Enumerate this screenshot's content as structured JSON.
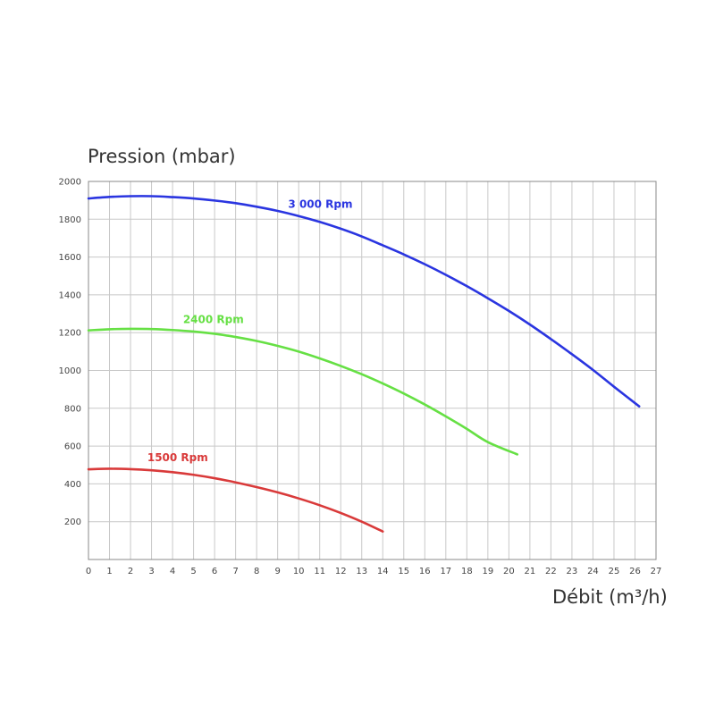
{
  "chart_data": {
    "type": "line",
    "xlabel": "Débit (m³/h)",
    "ylabel": "Pression (mbar)",
    "xlim": [
      0,
      27
    ],
    "ylim": [
      0,
      2000
    ],
    "x_ticks": [
      "0",
      "1",
      "2",
      "3",
      "4",
      "5",
      "6",
      "7",
      "8",
      "9",
      "10",
      "11",
      "12",
      "13",
      "14",
      "15",
      "16",
      "17",
      "18",
      "19",
      "20",
      "21",
      "22",
      "23",
      "24",
      "25",
      "26",
      "27"
    ],
    "y_ticks": [
      "200",
      "400",
      "600",
      "800",
      "1000",
      "1200",
      "1400",
      "1600",
      "1800",
      "2000"
    ],
    "grid": true,
    "series": [
      {
        "name": "3 000 Rpm",
        "color": "#2a35e0",
        "points": [
          [
            0,
            1910
          ],
          [
            1,
            1918
          ],
          [
            2,
            1922
          ],
          [
            3,
            1922
          ],
          [
            4,
            1917
          ],
          [
            5,
            1910
          ],
          [
            6,
            1899
          ],
          [
            7,
            1885
          ],
          [
            8,
            1866
          ],
          [
            9,
            1844
          ],
          [
            10,
            1817
          ],
          [
            11,
            1786
          ],
          [
            12,
            1750
          ],
          [
            13,
            1709
          ],
          [
            14,
            1662
          ],
          [
            15,
            1614
          ],
          [
            16,
            1562
          ],
          [
            17,
            1506
          ],
          [
            18,
            1446
          ],
          [
            19,
            1382
          ],
          [
            20,
            1315
          ],
          [
            21,
            1243
          ],
          [
            22,
            1166
          ],
          [
            23,
            1086
          ],
          [
            24,
            1003
          ],
          [
            25,
            914
          ],
          [
            26.2,
            810
          ]
        ]
      },
      {
        "name": "2400 Rpm",
        "color": "#66e044",
        "points": [
          [
            0,
            1212
          ],
          [
            1,
            1218
          ],
          [
            2,
            1220
          ],
          [
            3,
            1219
          ],
          [
            4,
            1214
          ],
          [
            5,
            1206
          ],
          [
            6,
            1194
          ],
          [
            7,
            1177
          ],
          [
            8,
            1156
          ],
          [
            9,
            1130
          ],
          [
            10,
            1100
          ],
          [
            11,
            1064
          ],
          [
            12,
            1024
          ],
          [
            13,
            980
          ],
          [
            14,
            931
          ],
          [
            15,
            878
          ],
          [
            16,
            820
          ],
          [
            17,
            757
          ],
          [
            18,
            691
          ],
          [
            19,
            621
          ],
          [
            20.4,
            556
          ]
        ]
      },
      {
        "name": "1500 Rpm",
        "color": "#d93a3a",
        "points": [
          [
            0,
            477
          ],
          [
            1,
            480
          ],
          [
            2,
            478
          ],
          [
            3,
            472
          ],
          [
            4,
            462
          ],
          [
            5,
            448
          ],
          [
            6,
            430
          ],
          [
            7,
            408
          ],
          [
            8,
            383
          ],
          [
            9,
            355
          ],
          [
            10,
            323
          ],
          [
            11,
            287
          ],
          [
            12,
            246
          ],
          [
            13,
            200
          ],
          [
            14,
            148
          ]
        ]
      }
    ]
  }
}
